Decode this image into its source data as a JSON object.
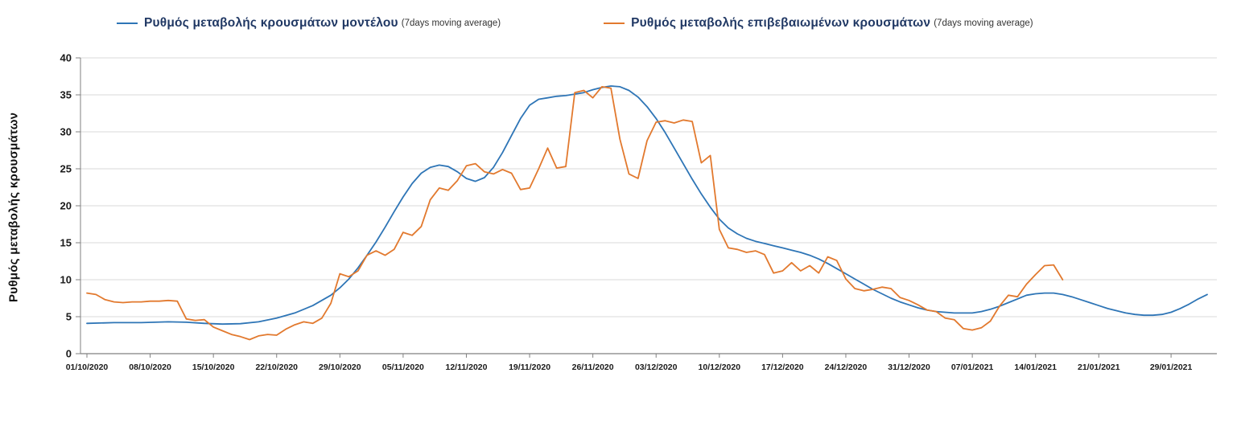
{
  "chart_data": {
    "type": "line",
    "title": "",
    "xlabel": "",
    "ylabel": "Ρυθμός μεταβολής κρουσμάτων",
    "ylim": [
      0,
      40
    ],
    "ytick_step": 5,
    "grid": "horizontal",
    "legend_position": "top",
    "background_color": "#ffffff",
    "grid_color": "#d9d9d9",
    "axis_color": "#808080",
    "tick_label_color": "#1a1a1a",
    "x_ticks": [
      {
        "day": 0,
        "label": "01/10/2020"
      },
      {
        "day": 7,
        "label": "08/10/2020"
      },
      {
        "day": 14,
        "label": "15/10/2020"
      },
      {
        "day": 21,
        "label": "22/10/2020"
      },
      {
        "day": 28,
        "label": "29/10/2020"
      },
      {
        "day": 35,
        "label": "05/11/2020"
      },
      {
        "day": 42,
        "label": "12/11/2020"
      },
      {
        "day": 49,
        "label": "19/11/2020"
      },
      {
        "day": 56,
        "label": "26/11/2020"
      },
      {
        "day": 63,
        "label": "03/12/2020"
      },
      {
        "day": 70,
        "label": "10/12/2020"
      },
      {
        "day": 77,
        "label": "17/12/2020"
      },
      {
        "day": 84,
        "label": "24/12/2020"
      },
      {
        "day": 91,
        "label": "31/12/2020"
      },
      {
        "day": 98,
        "label": "07/01/2021"
      },
      {
        "day": 105,
        "label": "14/01/2021"
      },
      {
        "day": 112,
        "label": "21/01/2021"
      },
      {
        "day": 120,
        "label": "29/01/2021"
      }
    ],
    "series": [
      {
        "id": "model",
        "name": "Ρυθμός μεταβολής κρουσμάτων μοντέλου",
        "sub": "(7days moving average)",
        "color": "#2e75b6",
        "points": [
          [
            0,
            4.1
          ],
          [
            3,
            4.2
          ],
          [
            6,
            4.2
          ],
          [
            9,
            4.3
          ],
          [
            11,
            4.25
          ],
          [
            13,
            4.1
          ],
          [
            15,
            4.0
          ],
          [
            17,
            4.05
          ],
          [
            19,
            4.3
          ],
          [
            21,
            4.8
          ],
          [
            23,
            5.5
          ],
          [
            25,
            6.5
          ],
          [
            27,
            7.9
          ],
          [
            28,
            8.9
          ],
          [
            29,
            10.1
          ],
          [
            30,
            11.6
          ],
          [
            31,
            13.3
          ],
          [
            32,
            15.1
          ],
          [
            33,
            17.1
          ],
          [
            34,
            19.2
          ],
          [
            35,
            21.2
          ],
          [
            36,
            23.0
          ],
          [
            37,
            24.4
          ],
          [
            38,
            25.2
          ],
          [
            39,
            25.5
          ],
          [
            40,
            25.3
          ],
          [
            41,
            24.6
          ],
          [
            42,
            23.7
          ],
          [
            43,
            23.3
          ],
          [
            44,
            23.8
          ],
          [
            45,
            25.2
          ],
          [
            46,
            27.2
          ],
          [
            47,
            29.5
          ],
          [
            48,
            31.8
          ],
          [
            49,
            33.6
          ],
          [
            50,
            34.4
          ],
          [
            51,
            34.6
          ],
          [
            52,
            34.8
          ],
          [
            53,
            34.9
          ],
          [
            54,
            35.1
          ],
          [
            55,
            35.3
          ],
          [
            56,
            35.7
          ],
          [
            57,
            36.0
          ],
          [
            58,
            36.2
          ],
          [
            59,
            36.1
          ],
          [
            60,
            35.6
          ],
          [
            61,
            34.7
          ],
          [
            62,
            33.4
          ],
          [
            63,
            31.8
          ],
          [
            64,
            29.9
          ],
          [
            65,
            27.8
          ],
          [
            66,
            25.7
          ],
          [
            67,
            23.6
          ],
          [
            68,
            21.6
          ],
          [
            69,
            19.8
          ],
          [
            70,
            18.2
          ],
          [
            71,
            17.0
          ],
          [
            72,
            16.2
          ],
          [
            73,
            15.6
          ],
          [
            74,
            15.2
          ],
          [
            75,
            14.9
          ],
          [
            76,
            14.6
          ],
          [
            77,
            14.3
          ],
          [
            78,
            14.0
          ],
          [
            79,
            13.7
          ],
          [
            80,
            13.3
          ],
          [
            81,
            12.8
          ],
          [
            82,
            12.2
          ],
          [
            83,
            11.5
          ],
          [
            84,
            10.8
          ],
          [
            85,
            10.1
          ],
          [
            86,
            9.4
          ],
          [
            87,
            8.7
          ],
          [
            88,
            8.1
          ],
          [
            89,
            7.5
          ],
          [
            90,
            7.0
          ],
          [
            91,
            6.6
          ],
          [
            92,
            6.2
          ],
          [
            93,
            5.9
          ],
          [
            94,
            5.7
          ],
          [
            95,
            5.6
          ],
          [
            96,
            5.5
          ],
          [
            97,
            5.5
          ],
          [
            98,
            5.5
          ],
          [
            99,
            5.7
          ],
          [
            100,
            6.0
          ],
          [
            101,
            6.4
          ],
          [
            102,
            6.9
          ],
          [
            103,
            7.4
          ],
          [
            104,
            7.9
          ],
          [
            105,
            8.1
          ],
          [
            106,
            8.2
          ],
          [
            107,
            8.2
          ],
          [
            108,
            8.0
          ],
          [
            109,
            7.7
          ],
          [
            110,
            7.3
          ],
          [
            111,
            6.9
          ],
          [
            112,
            6.5
          ],
          [
            113,
            6.1
          ],
          [
            114,
            5.8
          ],
          [
            115,
            5.5
          ],
          [
            116,
            5.3
          ],
          [
            117,
            5.2
          ],
          [
            118,
            5.2
          ],
          [
            119,
            5.3
          ],
          [
            120,
            5.6
          ],
          [
            121,
            6.1
          ],
          [
            122,
            6.7
          ],
          [
            123,
            7.4
          ],
          [
            124,
            8.0
          ]
        ]
      },
      {
        "id": "confirmed",
        "name": "Ρυθμός μεταβολής επιβεβαιωμένων κρουσμάτων",
        "sub": "(7days moving average)",
        "color": "#e2792e",
        "points": [
          [
            0,
            8.2
          ],
          [
            1,
            8.0
          ],
          [
            2,
            7.3
          ],
          [
            3,
            7.0
          ],
          [
            4,
            6.9
          ],
          [
            5,
            7.0
          ],
          [
            6,
            7.0
          ],
          [
            7,
            7.1
          ],
          [
            8,
            7.1
          ],
          [
            9,
            7.2
          ],
          [
            10,
            7.1
          ],
          [
            11,
            4.7
          ],
          [
            12,
            4.5
          ],
          [
            13,
            4.6
          ],
          [
            14,
            3.6
          ],
          [
            15,
            3.1
          ],
          [
            16,
            2.6
          ],
          [
            17,
            2.3
          ],
          [
            18,
            1.9
          ],
          [
            19,
            2.4
          ],
          [
            20,
            2.6
          ],
          [
            21,
            2.5
          ],
          [
            22,
            3.3
          ],
          [
            23,
            3.9
          ],
          [
            24,
            4.3
          ],
          [
            25,
            4.1
          ],
          [
            26,
            4.8
          ],
          [
            27,
            6.8
          ],
          [
            28,
            10.8
          ],
          [
            29,
            10.4
          ],
          [
            30,
            11.2
          ],
          [
            31,
            13.3
          ],
          [
            32,
            13.9
          ],
          [
            33,
            13.3
          ],
          [
            34,
            14.1
          ],
          [
            35,
            16.4
          ],
          [
            36,
            16.0
          ],
          [
            37,
            17.2
          ],
          [
            38,
            20.8
          ],
          [
            39,
            22.4
          ],
          [
            40,
            22.1
          ],
          [
            41,
            23.4
          ],
          [
            42,
            25.4
          ],
          [
            43,
            25.7
          ],
          [
            44,
            24.6
          ],
          [
            45,
            24.3
          ],
          [
            46,
            24.9
          ],
          [
            47,
            24.4
          ],
          [
            48,
            22.2
          ],
          [
            49,
            22.4
          ],
          [
            50,
            25.0
          ],
          [
            51,
            27.8
          ],
          [
            52,
            25.1
          ],
          [
            53,
            25.3
          ],
          [
            54,
            35.3
          ],
          [
            55,
            35.6
          ],
          [
            56,
            34.6
          ],
          [
            57,
            36.1
          ],
          [
            58,
            35.9
          ],
          [
            59,
            29.0
          ],
          [
            60,
            24.3
          ],
          [
            61,
            23.7
          ],
          [
            62,
            28.8
          ],
          [
            63,
            31.3
          ],
          [
            64,
            31.5
          ],
          [
            65,
            31.2
          ],
          [
            66,
            31.6
          ],
          [
            67,
            31.4
          ],
          [
            68,
            25.8
          ],
          [
            69,
            26.8
          ],
          [
            70,
            16.8
          ],
          [
            71,
            14.3
          ],
          [
            72,
            14.1
          ],
          [
            73,
            13.7
          ],
          [
            74,
            13.9
          ],
          [
            75,
            13.4
          ],
          [
            76,
            10.9
          ],
          [
            77,
            11.2
          ],
          [
            78,
            12.3
          ],
          [
            79,
            11.2
          ],
          [
            80,
            11.9
          ],
          [
            81,
            10.9
          ],
          [
            82,
            13.1
          ],
          [
            83,
            12.6
          ],
          [
            84,
            10.1
          ],
          [
            85,
            8.8
          ],
          [
            86,
            8.5
          ],
          [
            87,
            8.7
          ],
          [
            88,
            9.0
          ],
          [
            89,
            8.8
          ],
          [
            90,
            7.6
          ],
          [
            91,
            7.2
          ],
          [
            92,
            6.6
          ],
          [
            93,
            5.9
          ],
          [
            94,
            5.7
          ],
          [
            95,
            4.8
          ],
          [
            96,
            4.6
          ],
          [
            97,
            3.4
          ],
          [
            98,
            3.2
          ],
          [
            99,
            3.5
          ],
          [
            100,
            4.4
          ],
          [
            101,
            6.4
          ],
          [
            102,
            7.9
          ],
          [
            103,
            7.7
          ],
          [
            104,
            9.4
          ],
          [
            105,
            10.7
          ],
          [
            106,
            11.9
          ],
          [
            107,
            12.0
          ],
          [
            108,
            10.0
          ]
        ]
      }
    ],
    "y_tick_labels": [
      "0",
      "5",
      "10",
      "15",
      "20",
      "25",
      "30",
      "35",
      "40"
    ]
  }
}
